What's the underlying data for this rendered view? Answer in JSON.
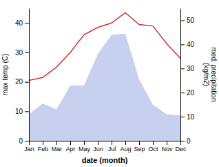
{
  "chart_data": {
    "type": "line",
    "categories": [
      "Jan",
      "Feb",
      "Mar",
      "Apr",
      "May",
      "Jun",
      "Jul",
      "Aug",
      "Sep",
      "Oct",
      "Nov",
      "Dec"
    ],
    "series": [
      {
        "type": "area",
        "axis": "y2",
        "color": "#c8d0f0",
        "values": [
          11.0,
          15.5,
          13.0,
          23.0,
          23.0,
          36.0,
          44.0,
          44.5,
          25.5,
          15.0,
          11.0,
          10.5
        ]
      },
      {
        "type": "line",
        "color": "#cc3333",
        "values": [
          20.5,
          21.5,
          25.0,
          30.0,
          36.0,
          38.5,
          40.0,
          43.5,
          39.5,
          39.0,
          33.0,
          28.0
        ]
      }
    ],
    "xlabel": "date (month)",
    "ylabel": "max temp (C)",
    "y2label": "med. precipitation\n(kg/m2)",
    "ylim": [
      0,
      45
    ],
    "yticks": [
      0,
      10,
      20,
      30,
      40
    ],
    "y2lim": [
      0,
      55
    ],
    "y2ticks": [
      0,
      10,
      20,
      30,
      40,
      50
    ],
    "grid": false
  }
}
